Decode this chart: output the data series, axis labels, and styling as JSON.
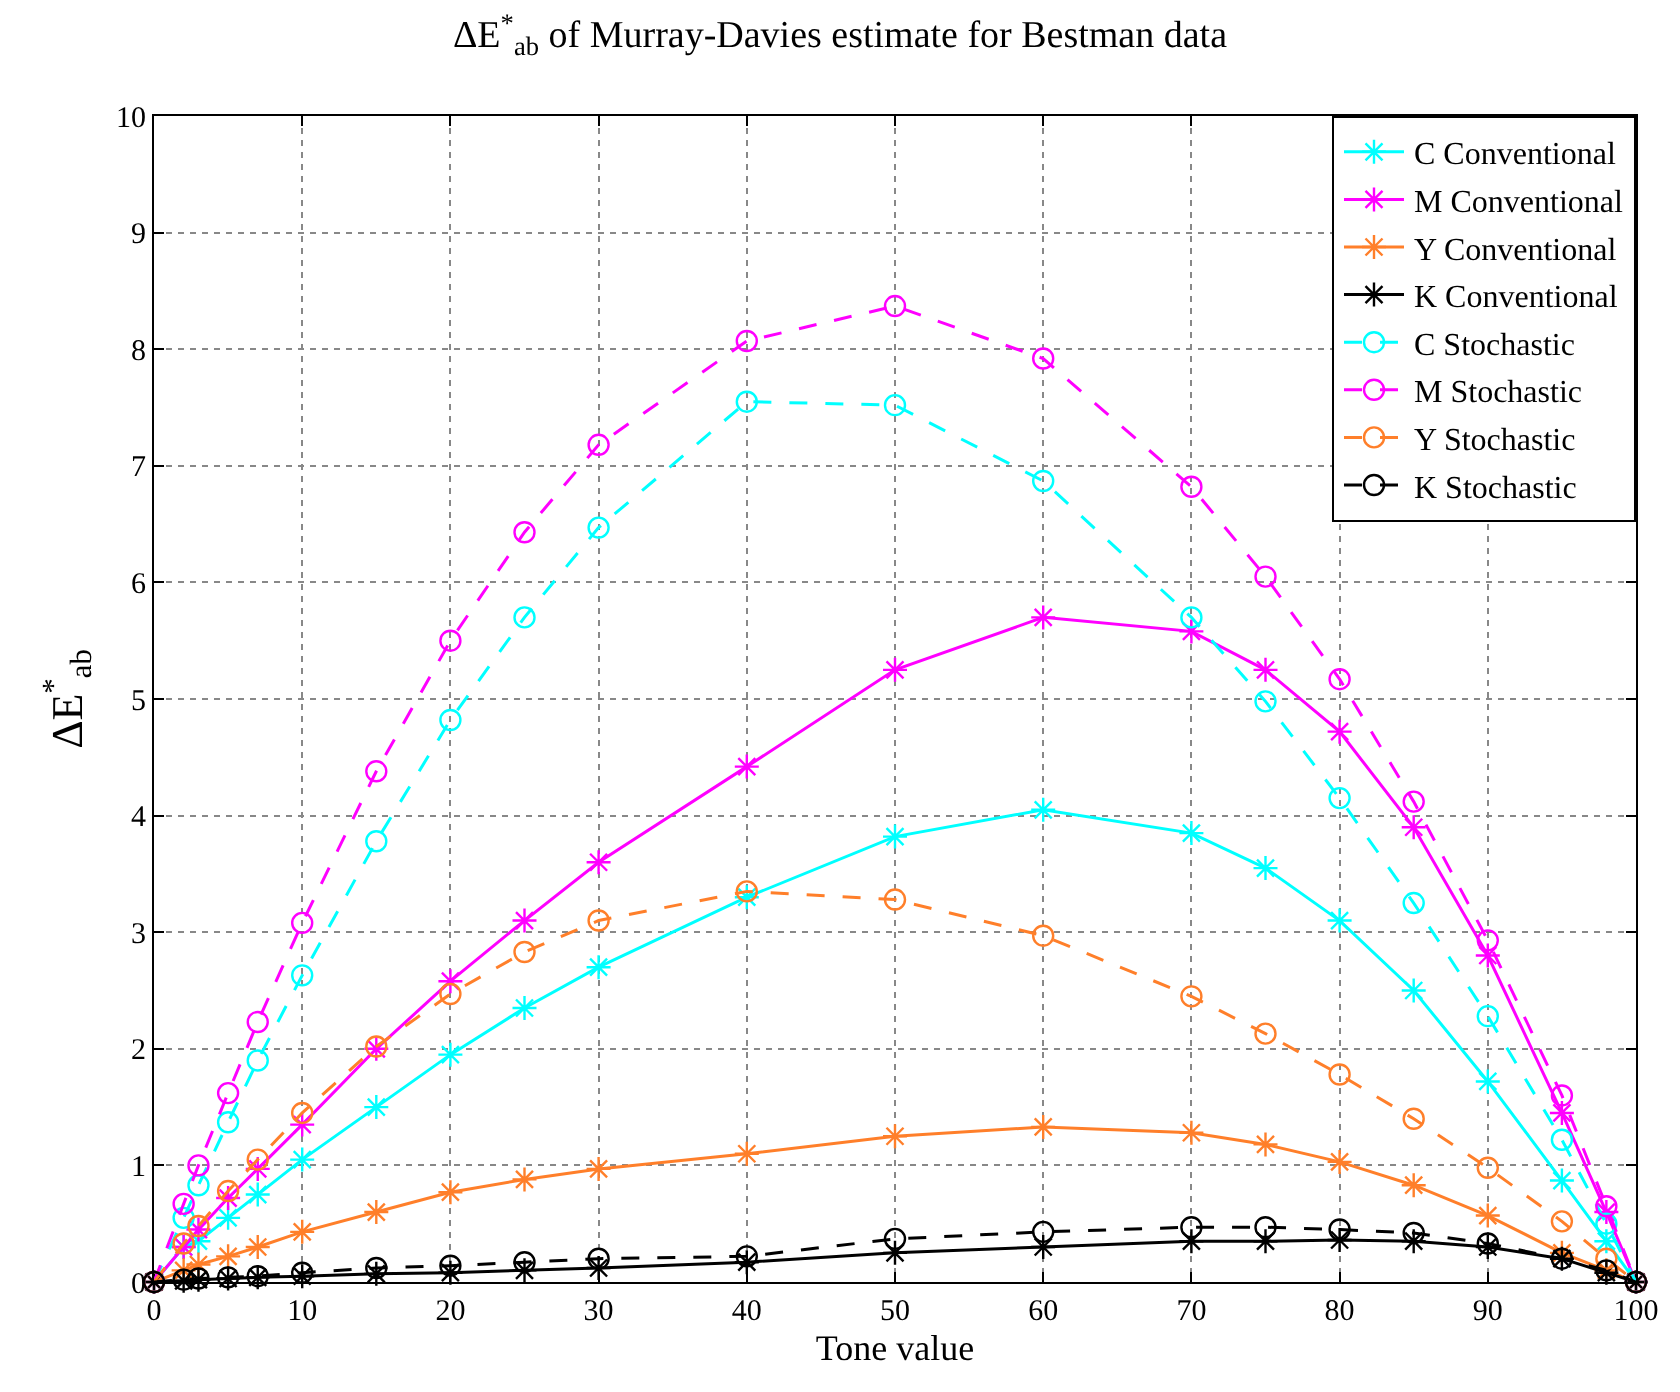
{
  "chart_data": {
    "type": "line",
    "title": "ΔE$^{*}$$_{ab}$ of Murray-Davies estimate for Bestman data",
    "xlabel": "Tone value",
    "ylabel": "ΔE$^{*}$$_{ab}$",
    "x": [
      0,
      2,
      3,
      5,
      7,
      10,
      15,
      20,
      25,
      30,
      40,
      50,
      60,
      70,
      75,
      80,
      85,
      90,
      95,
      98,
      100
    ],
    "xlim": [
      0,
      100
    ],
    "xticks": [
      0,
      10,
      20,
      30,
      40,
      50,
      60,
      70,
      80,
      90,
      100
    ],
    "ylim": [
      0,
      10
    ],
    "yticks": [
      0,
      1,
      2,
      3,
      4,
      5,
      6,
      7,
      8,
      9,
      10
    ],
    "grid": true,
    "legend": "top right",
    "series": [
      {
        "name": "C Conventional",
        "color": "#00ffff",
        "marker": "cross",
        "line_style": "solid",
        "values": [
          0,
          0.3,
          0.35,
          0.55,
          0.75,
          1.05,
          1.5,
          1.95,
          2.35,
          2.7,
          3.3,
          3.82,
          4.05,
          3.85,
          3.55,
          3.1,
          2.5,
          1.72,
          0.87,
          0.35,
          0
        ]
      },
      {
        "name": "M Conventional",
        "color": "#ff00ff",
        "marker": "cross",
        "line_style": "solid",
        "values": [
          0,
          0.3,
          0.45,
          0.72,
          0.97,
          1.35,
          2.0,
          2.58,
          3.1,
          3.6,
          4.42,
          5.25,
          5.7,
          5.58,
          5.25,
          4.72,
          3.9,
          2.8,
          1.45,
          0.6,
          0
        ]
      },
      {
        "name": "Y Conventional",
        "color": "#ff7f2a",
        "marker": "cross",
        "line_style": "solid",
        "values": [
          0,
          0.1,
          0.15,
          0.22,
          0.3,
          0.43,
          0.6,
          0.77,
          0.88,
          0.97,
          1.1,
          1.25,
          1.33,
          1.28,
          1.18,
          1.03,
          0.83,
          0.57,
          0.25,
          0.1,
          0
        ]
      },
      {
        "name": "K Conventional",
        "color": "#000000",
        "marker": "cross",
        "line_style": "solid",
        "values": [
          0,
          0.01,
          0.02,
          0.03,
          0.04,
          0.05,
          0.07,
          0.08,
          0.1,
          0.12,
          0.17,
          0.25,
          0.3,
          0.35,
          0.35,
          0.36,
          0.35,
          0.3,
          0.2,
          0.08,
          0
        ]
      },
      {
        "name": "C Stochastic",
        "color": "#00ffff",
        "marker": "circle",
        "line_style": "dashed",
        "values": [
          0,
          0.55,
          0.83,
          1.37,
          1.9,
          2.63,
          3.78,
          4.82,
          5.7,
          6.47,
          7.55,
          7.52,
          6.87,
          5.7,
          4.98,
          4.15,
          3.25,
          2.28,
          1.22,
          0.5,
          0
        ]
      },
      {
        "name": "M Stochastic",
        "color": "#ff00ff",
        "marker": "circle",
        "line_style": "dashed",
        "values": [
          0,
          0.67,
          1.0,
          1.62,
          2.23,
          3.08,
          4.38,
          5.5,
          6.43,
          7.18,
          8.07,
          8.37,
          7.92,
          6.82,
          6.05,
          5.17,
          4.12,
          2.93,
          1.6,
          0.65,
          0
        ]
      },
      {
        "name": "Y Stochastic",
        "color": "#ff7f2a",
        "marker": "circle",
        "line_style": "dashed",
        "values": [
          0,
          0.33,
          0.48,
          0.78,
          1.05,
          1.45,
          2.02,
          2.47,
          2.83,
          3.1,
          3.35,
          3.28,
          2.97,
          2.45,
          2.13,
          1.78,
          1.4,
          0.98,
          0.52,
          0.2,
          0
        ]
      },
      {
        "name": "K Stochastic",
        "color": "#000000",
        "marker": "circle",
        "line_style": "dashed",
        "values": [
          0,
          0.02,
          0.03,
          0.04,
          0.05,
          0.08,
          0.12,
          0.14,
          0.17,
          0.2,
          0.22,
          0.37,
          0.43,
          0.47,
          0.47,
          0.45,
          0.42,
          0.33,
          0.2,
          0.1,
          0
        ]
      }
    ]
  }
}
